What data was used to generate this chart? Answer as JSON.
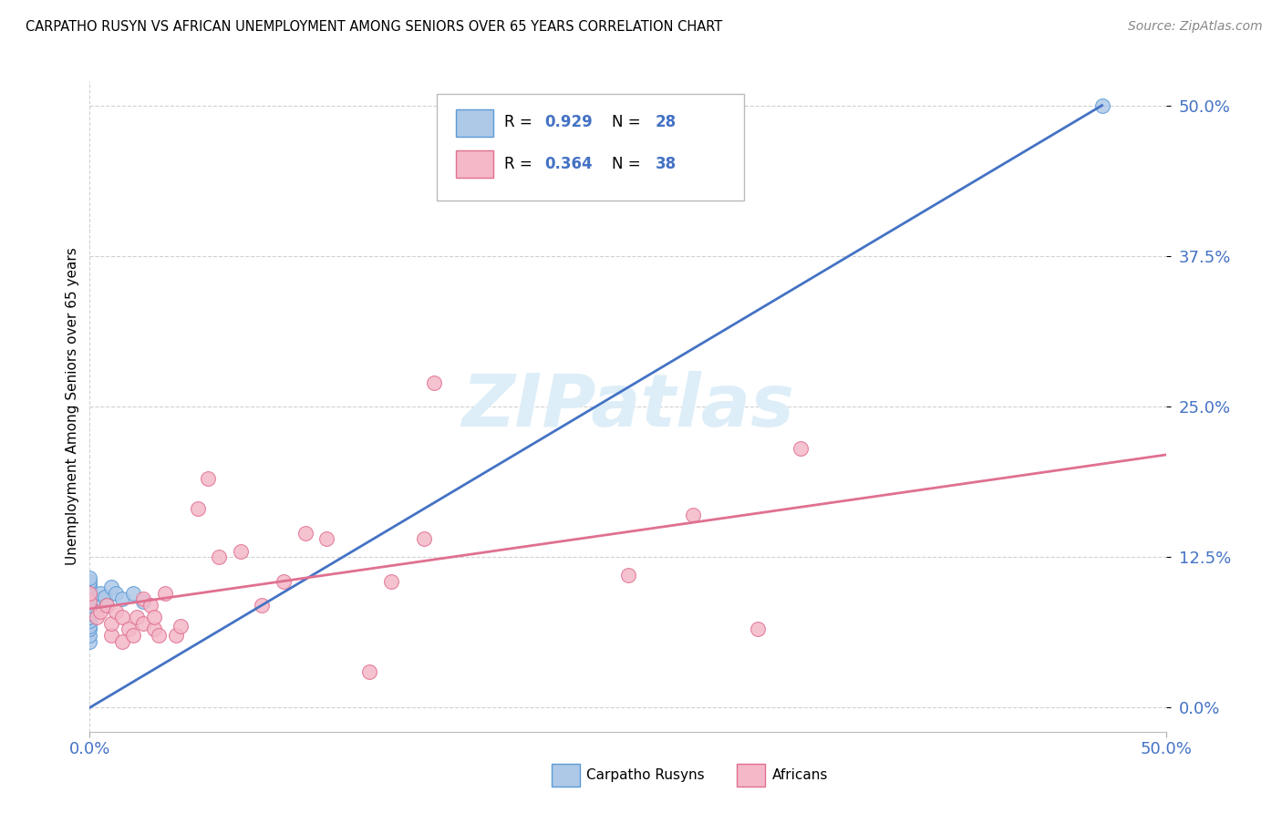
{
  "title": "CARPATHO RUSYN VS AFRICAN UNEMPLOYMENT AMONG SENIORS OVER 65 YEARS CORRELATION CHART",
  "source": "Source: ZipAtlas.com",
  "ylabel": "Unemployment Among Seniors over 65 years",
  "xlim": [
    0,
    0.5
  ],
  "ylim": [
    -0.02,
    0.52
  ],
  "legend_r1": "R = 0.929",
  "legend_n1": "N = 28",
  "legend_r2": "R = 0.364",
  "legend_n2": "N = 38",
  "color_rusyn_fill": "#aec8e8",
  "color_rusyn_edge": "#5b9bd5",
  "color_african_fill": "#f4b8c8",
  "color_african_edge": "#e07090",
  "color_line_rusyn": "#4472c4",
  "color_line_african": "#e07090",
  "watermark_color": "#ddeef8",
  "tick_color": "#4472c4",
  "carpatho_x": [
    0.0,
    0.0,
    0.0,
    0.0,
    0.0,
    0.0,
    0.0,
    0.0,
    0.0,
    0.0,
    0.0,
    0.0,
    0.0,
    0.0,
    0.0,
    0.0,
    0.0,
    0.0,
    0.005,
    0.005,
    0.007,
    0.008,
    0.01,
    0.012,
    0.015,
    0.02,
    0.025,
    0.47
  ],
  "carpatho_y": [
    0.055,
    0.06,
    0.065,
    0.068,
    0.072,
    0.075,
    0.078,
    0.082,
    0.085,
    0.088,
    0.09,
    0.092,
    0.095,
    0.098,
    0.1,
    0.102,
    0.105,
    0.108,
    0.09,
    0.095,
    0.092,
    0.085,
    0.1,
    0.095,
    0.09,
    0.095,
    0.088,
    0.5
  ],
  "african_x": [
    0.0,
    0.0,
    0.003,
    0.005,
    0.008,
    0.01,
    0.01,
    0.012,
    0.015,
    0.015,
    0.018,
    0.02,
    0.022,
    0.025,
    0.025,
    0.028,
    0.03,
    0.03,
    0.032,
    0.035,
    0.04,
    0.042,
    0.05,
    0.055,
    0.06,
    0.07,
    0.08,
    0.09,
    0.1,
    0.11,
    0.13,
    0.14,
    0.155,
    0.16,
    0.25,
    0.28,
    0.31,
    0.33
  ],
  "african_y": [
    0.088,
    0.095,
    0.075,
    0.08,
    0.085,
    0.06,
    0.07,
    0.08,
    0.055,
    0.075,
    0.065,
    0.06,
    0.075,
    0.07,
    0.09,
    0.085,
    0.065,
    0.075,
    0.06,
    0.095,
    0.06,
    0.068,
    0.165,
    0.19,
    0.125,
    0.13,
    0.085,
    0.105,
    0.145,
    0.14,
    0.03,
    0.105,
    0.14,
    0.27,
    0.11,
    0.16,
    0.065,
    0.215
  ],
  "line_rusyn_x0": 0.0,
  "line_rusyn_y0": 0.0,
  "line_rusyn_x1": 0.47,
  "line_rusyn_y1": 0.5,
  "line_african_x0": 0.0,
  "line_african_y0": 0.082,
  "line_african_x1": 0.5,
  "line_african_y1": 0.21
}
